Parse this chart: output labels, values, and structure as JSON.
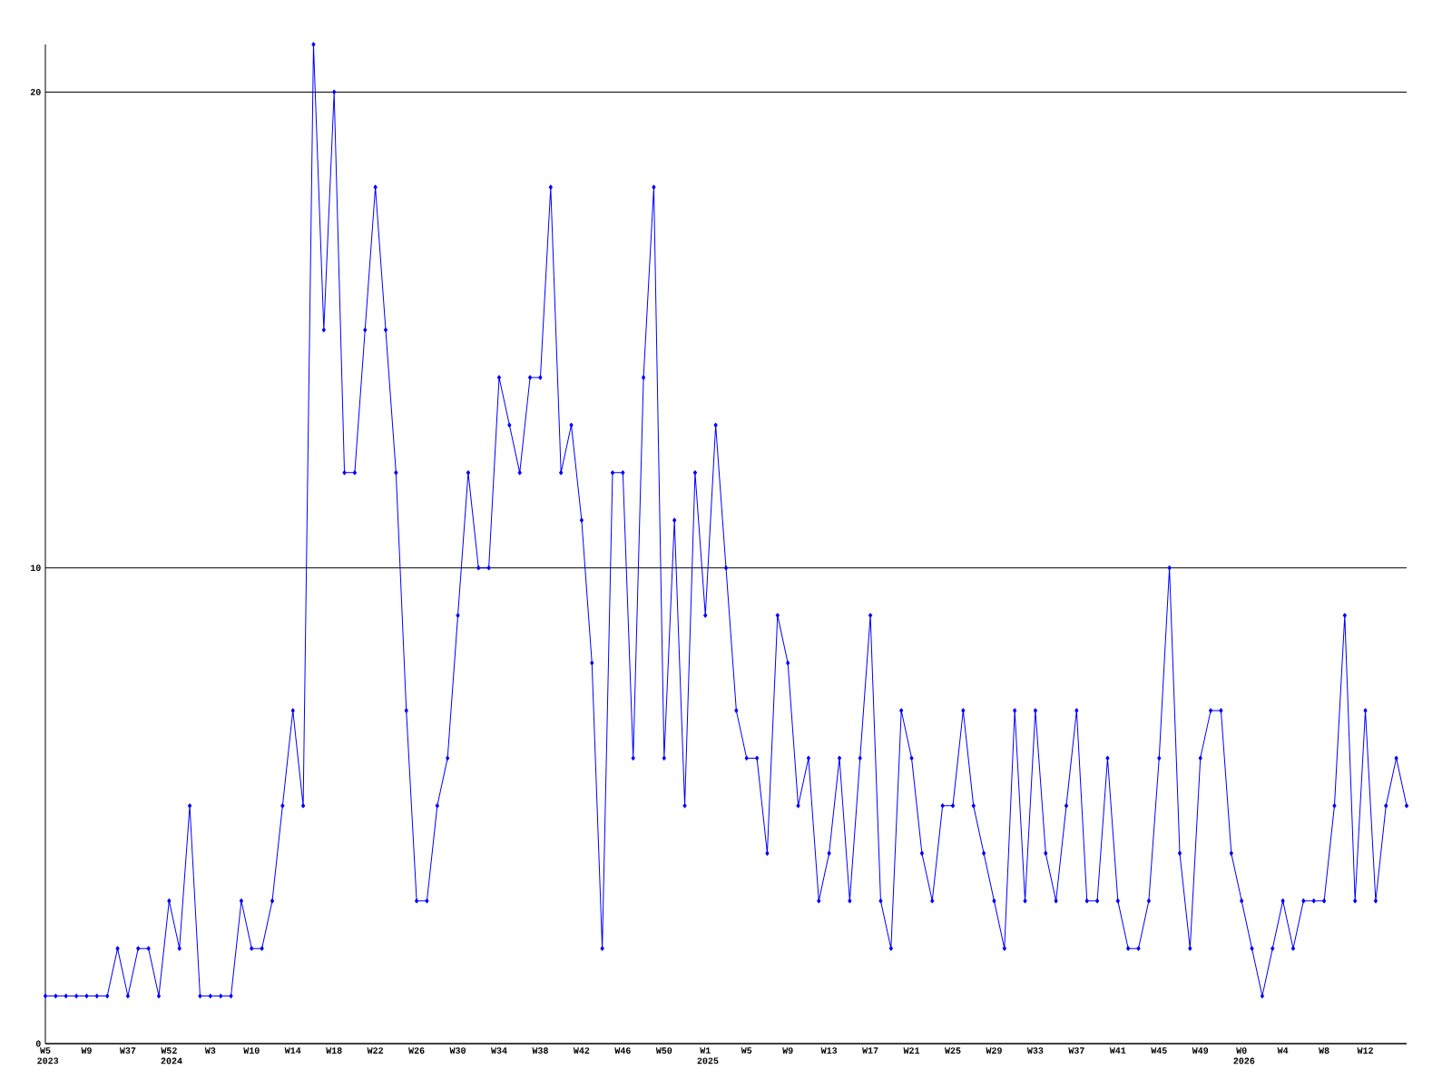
{
  "chart_data": {
    "type": "line",
    "categories": [
      "W5 2023",
      null,
      null,
      null,
      "W9",
      null,
      null,
      null,
      "W37",
      null,
      null,
      null,
      "W52 2024",
      null,
      null,
      null,
      "W3",
      null,
      null,
      null,
      "W10",
      null,
      null,
      null,
      "W14",
      null,
      null,
      null,
      "W18",
      null,
      null,
      null,
      "W22",
      null,
      null,
      null,
      "W26",
      null,
      null,
      null,
      "W30",
      null,
      null,
      null,
      "W34",
      null,
      null,
      null,
      "W38",
      null,
      null,
      null,
      "W42",
      null,
      null,
      null,
      "W46",
      null,
      null,
      null,
      "W50",
      null,
      null,
      null,
      "W1 2025",
      null,
      null,
      null,
      "W5",
      null,
      null,
      null,
      "W9",
      null,
      null,
      null,
      "W13",
      null,
      null,
      null,
      "W17",
      null,
      null,
      null,
      "W21",
      null,
      null,
      null,
      "W25",
      null,
      null,
      null,
      "W29",
      null,
      null,
      null,
      "W33",
      null,
      null,
      null,
      "W37",
      null,
      null,
      null,
      "W41",
      null,
      null,
      null,
      "W45",
      null,
      null,
      null,
      "W49",
      null,
      null,
      null,
      "W0 2026",
      null,
      null,
      null,
      "W4",
      null,
      null,
      null,
      "W8",
      null,
      null,
      null,
      "W12",
      null,
      null,
      null,
      null
    ],
    "series": [
      {
        "color": "#0000ff",
        "values": [
          1,
          1,
          1,
          1,
          1,
          1,
          1,
          2,
          1,
          2,
          2,
          1,
          3,
          2,
          5,
          1,
          1,
          1,
          1,
          3,
          2,
          2,
          3,
          5,
          7,
          5,
          21,
          15,
          20,
          12,
          12,
          15,
          18,
          15,
          12,
          7,
          3,
          3,
          5,
          6,
          9,
          12,
          10,
          10,
          14,
          13,
          12,
          14,
          14,
          18,
          12,
          13,
          11,
          8,
          2,
          12,
          12,
          6,
          14,
          18,
          6,
          11,
          5,
          12,
          9,
          13,
          10,
          7,
          6,
          6,
          4,
          9,
          8,
          5,
          6,
          3,
          4,
          6,
          3,
          6,
          9,
          3,
          2,
          7,
          6,
          4,
          3,
          5,
          5,
          7,
          5,
          4,
          3,
          2,
          7,
          3,
          7,
          4,
          3,
          5,
          7,
          3,
          3,
          6,
          3,
          2,
          2,
          3,
          6,
          10,
          4,
          2,
          6,
          7,
          7,
          4,
          3,
          2,
          1,
          2,
          3,
          2,
          3,
          3,
          3,
          5,
          9,
          3,
          7,
          3,
          5,
          6,
          5
        ]
      }
    ],
    "ylim": [
      0,
      21
    ],
    "yticks": [
      0,
      10,
      20
    ],
    "grid": "y",
    "marker": "diamond",
    "line_style": "solid"
  }
}
